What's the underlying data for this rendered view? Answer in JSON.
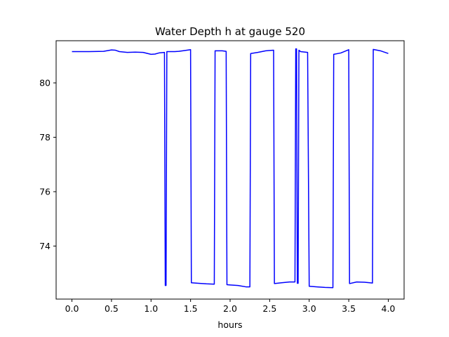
{
  "chart_data": {
    "type": "line",
    "title": "Water Depth h at gauge 520",
    "xlabel": "hours",
    "ylabel": "",
    "xlim": [
      -0.2,
      4.2
    ],
    "ylim": [
      72.05,
      81.55
    ],
    "xticks": [
      0.0,
      0.5,
      1.0,
      1.5,
      2.0,
      2.5,
      3.0,
      3.5,
      4.0
    ],
    "xtick_labels": [
      "0.0",
      "0.5",
      "1.0",
      "1.5",
      "2.0",
      "2.5",
      "3.0",
      "3.5",
      "4.0"
    ],
    "yticks": [
      74,
      76,
      78,
      80
    ],
    "ytick_labels": [
      "74",
      "76",
      "78",
      "80"
    ],
    "grid": false,
    "series": [
      {
        "color": "#0000ff",
        "x": [
          0.0,
          0.2,
          0.4,
          0.5,
          0.55,
          0.6,
          0.7,
          0.8,
          0.9,
          1.0,
          1.05,
          1.1,
          1.17,
          1.18,
          1.19,
          1.2,
          1.25,
          1.3,
          1.35,
          1.4,
          1.5,
          1.51,
          1.6,
          1.7,
          1.8,
          1.81,
          1.9,
          1.95,
          1.96,
          2.0,
          2.1,
          2.2,
          2.25,
          2.26,
          2.35,
          2.45,
          2.55,
          2.56,
          2.65,
          2.75,
          2.82,
          2.83,
          2.84,
          2.85,
          2.86,
          2.87,
          2.88,
          2.89,
          2.98,
          3.0,
          3.1,
          3.2,
          3.3,
          3.31,
          3.4,
          3.5,
          3.51,
          3.6,
          3.7,
          3.8,
          3.81,
          3.9,
          4.0
        ],
        "values": [
          81.15,
          81.15,
          81.16,
          81.21,
          81.2,
          81.15,
          81.12,
          81.13,
          81.12,
          81.05,
          81.06,
          81.1,
          81.12,
          72.55,
          72.55,
          81.15,
          81.15,
          81.15,
          81.16,
          81.18,
          81.22,
          72.65,
          72.63,
          72.61,
          72.6,
          81.18,
          81.18,
          81.16,
          72.58,
          72.57,
          72.55,
          72.5,
          72.5,
          81.08,
          81.12,
          81.18,
          81.2,
          72.62,
          72.65,
          72.68,
          72.68,
          81.25,
          81.25,
          72.63,
          72.63,
          81.2,
          81.18,
          81.15,
          81.12,
          72.52,
          72.5,
          72.48,
          72.47,
          81.05,
          81.1,
          81.22,
          72.62,
          72.68,
          72.67,
          72.64,
          81.23,
          81.18,
          81.08
        ]
      }
    ]
  }
}
